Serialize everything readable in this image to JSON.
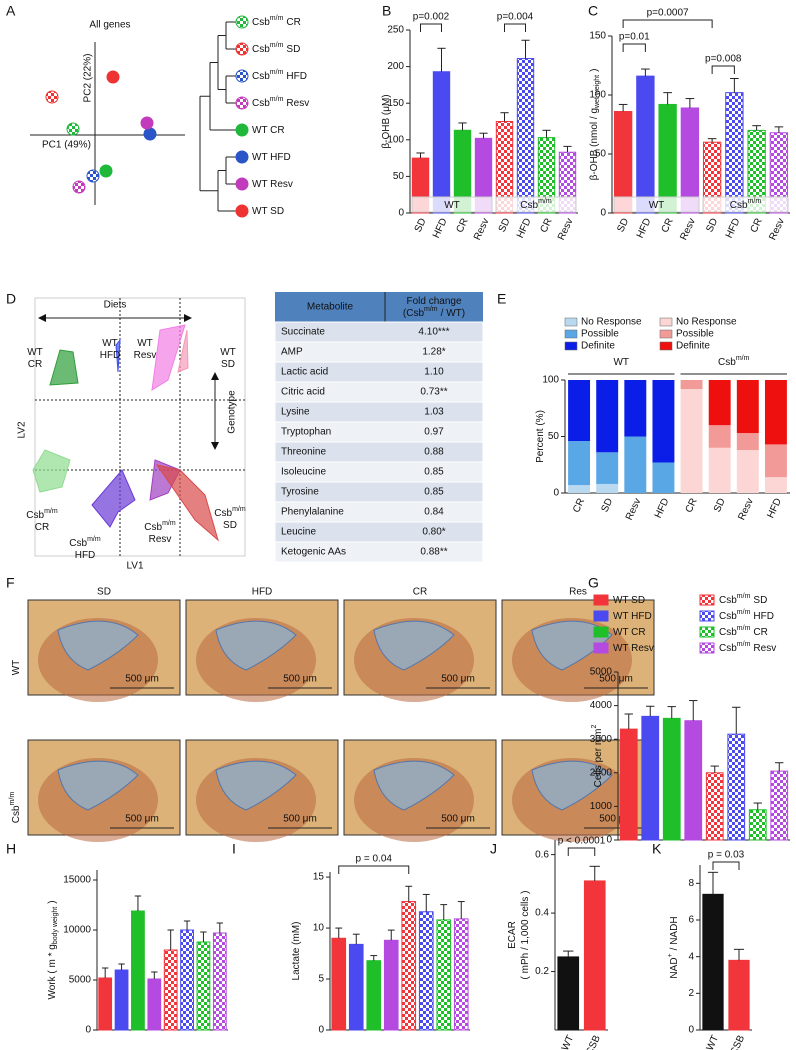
{
  "pca": {
    "panel": "A",
    "title": "All genes",
    "xlabel": "PC1 (49%)",
    "ylabel": "PC2 (22%)",
    "dendrogram": [
      {
        "text": "Csb",
        "sup": "m/m",
        "rest": "CR"
      },
      {
        "text": "Csb",
        "sup": "m/m",
        "rest": "SD"
      },
      {
        "text": "Csb",
        "sup": "m/m",
        "rest": "HFD"
      },
      {
        "text": "Csb",
        "sup": "m/m",
        "rest": "Resv"
      },
      "WT CR",
      "WT HFD",
      "WT Resv",
      "WT SD"
    ],
    "colors": [
      "#1fb83a",
      "#ee3333",
      "#2a55c8",
      "#c23bbd",
      "#1fb83a",
      "#2a55c8",
      "#c23bbd",
      "#ee3333"
    ],
    "checkered": [
      true,
      true,
      true,
      true,
      false,
      false,
      false,
      false
    ]
  },
  "plsda": {
    "panel": "D",
    "xlabel": "LV1",
    "ylabel": "LV2",
    "diets_label": "Diets",
    "genotype_label": "Genotype",
    "groups": [
      [
        "WT",
        "CR"
      ],
      [
        "WT",
        "HFD"
      ],
      [
        "WT",
        "Resv"
      ],
      [
        "WT",
        "SD"
      ],
      [
        {
          "text": "Csb",
          "sup": "m/m"
        },
        "CR"
      ],
      [
        {
          "text": "Csb",
          "sup": "m/m"
        },
        "HFD"
      ],
      [
        {
          "text": "Csb",
          "sup": "m/m"
        },
        "Resv"
      ],
      [
        {
          "text": "Csb",
          "sup": "m/m"
        },
        "SD"
      ]
    ]
  },
  "table": {
    "header": [
      "Metabolite",
      [
        "Fold change",
        {
          "text": "(Csb",
          "sup": "m/m",
          "rest": "/ WT)"
        }
      ]
    ],
    "rows": [
      [
        "Succinate",
        "4.10***"
      ],
      [
        "AMP",
        "1.28*"
      ],
      [
        "Lactic acid",
        "1.10"
      ],
      [
        "Citric acid",
        "0.73**"
      ],
      [
        "Lysine",
        "1.03"
      ],
      [
        "Tryptophan",
        "0.97"
      ],
      [
        "Threonine",
        "0.88"
      ],
      [
        "Isoleucine",
        "0.85"
      ],
      [
        "Tyrosine",
        "0.85"
      ],
      [
        "Phenylalanine",
        "0.84"
      ],
      [
        "Leucine",
        "0.80*"
      ],
      [
        "Ketogenic AAs",
        "0.88**"
      ]
    ]
  },
  "histology": {
    "panel": "F",
    "columns": [
      "SD",
      "HFD",
      "CR",
      "Res"
    ],
    "column_colors": [
      "#e8262b",
      "#2424d8",
      "#22c022",
      "#c23bbd"
    ],
    "rows": [
      "WT",
      {
        "text": "Csb",
        "sup": "m/m"
      }
    ],
    "scale_bar": "500 μm"
  },
  "chart_data": [
    {
      "type": "bar",
      "panel": "B",
      "ylabel": "β-OHB (μM)",
      "categories": [
        "SD",
        "HFD",
        "CR",
        "Resv",
        "SD",
        "HFD",
        "CR",
        "Resv"
      ],
      "values": [
        75,
        193,
        113,
        102,
        125,
        211,
        103,
        83
      ],
      "errors": [
        7,
        32,
        10,
        7,
        12,
        25,
        10,
        8
      ],
      "colors": [
        "#f2353b",
        "#4a4af0",
        "#1fbf2a",
        "#b44ae0",
        "#f2353b",
        "#4a4af0",
        "#1fbf2a",
        "#b44ae0"
      ],
      "checkered": [
        false,
        false,
        false,
        false,
        true,
        true,
        true,
        true
      ],
      "groups": [
        "WT",
        {
          "text": "Csb",
          "sup": "m/m"
        }
      ],
      "annotations": [
        "p=0.002",
        "p=0.004"
      ],
      "ylim": [
        0,
        250
      ],
      "yticks": [
        0,
        50,
        100,
        150,
        200,
        250
      ]
    },
    {
      "type": "bar",
      "panel": "C",
      "ylabel": {
        "text": "β-OHB (nmol / g",
        "sub": "wet weight",
        "rest": ")"
      },
      "categories": [
        "SD",
        "HFD",
        "CR",
        "Resv",
        "SD",
        "HFD",
        "CR",
        "Resv"
      ],
      "values": [
        86,
        116,
        92,
        89,
        60,
        102,
        70,
        68
      ],
      "errors": [
        6,
        6,
        10,
        8,
        3,
        12,
        4,
        5
      ],
      "colors": [
        "#f2353b",
        "#4a4af0",
        "#1fbf2a",
        "#b44ae0",
        "#f2353b",
        "#4a4af0",
        "#1fbf2a",
        "#b44ae0"
      ],
      "checkered": [
        false,
        false,
        false,
        false,
        true,
        true,
        true,
        true
      ],
      "groups": [
        "WT",
        {
          "text": "Csb",
          "sup": "m/m"
        }
      ],
      "annotations": [
        "p=0.0007",
        "p=0.01",
        "p=0.008"
      ],
      "ylim": [
        0,
        150
      ],
      "yticks": [
        0,
        50,
        100,
        150
      ]
    },
    {
      "type": "stacked_bar",
      "panel": "E",
      "ylabel": "Percent (%)",
      "categories": [
        "CR",
        "SD",
        "Resv",
        "HFD",
        "CR",
        "SD",
        "Resv",
        "HFD"
      ],
      "series": [
        {
          "name": "No Response",
          "color": "#b9d9f0",
          "values": [
            7,
            8,
            0,
            0,
            null,
            null,
            null,
            null
          ]
        },
        {
          "name": "Possible",
          "color": "#5aa7e6",
          "values": [
            39,
            28,
            50,
            27,
            null,
            null,
            null,
            null
          ]
        },
        {
          "name": "Definite",
          "color": "#0a1ee8",
          "values": [
            54,
            64,
            50,
            73,
            null,
            null,
            null,
            null
          ]
        },
        {
          "name": "No Response",
          "color": "#fbd6d4",
          "values": [
            null,
            null,
            null,
            null,
            92,
            40,
            38,
            14
          ]
        },
        {
          "name": "Possible",
          "color": "#f29a98",
          "values": [
            null,
            null,
            null,
            null,
            8,
            20,
            15,
            29
          ]
        },
        {
          "name": "Definite",
          "color": "#ee0f0f",
          "values": [
            null,
            null,
            null,
            null,
            0,
            40,
            47,
            57
          ]
        }
      ],
      "groups": [
        "WT",
        {
          "text": "Csb",
          "sup": "m/m"
        }
      ],
      "ylim": [
        0,
        100
      ],
      "yticks": [
        0,
        50,
        100
      ]
    },
    {
      "type": "bar",
      "panel": "G",
      "ylabel": {
        "text": "Cells per mm",
        "sup": "2"
      },
      "legend": [
        "WT SD",
        "WT HFD",
        "WT CR",
        "WT Resv",
        {
          "text": "Csb",
          "sup": "m/m",
          "rest": "SD"
        },
        {
          "text": "Csb",
          "sup": "m/m",
          "rest": "HFD"
        },
        {
          "text": "Csb",
          "sup": "m/m",
          "rest": "CR"
        },
        {
          "text": "Csb",
          "sup": "m/m",
          "rest": "Resv"
        }
      ],
      "values": [
        3300,
        3680,
        3620,
        3550,
        2000,
        3150,
        900,
        2050
      ],
      "errors": [
        450,
        300,
        350,
        600,
        200,
        800,
        200,
        250
      ],
      "colors": [
        "#f2353b",
        "#4a4af0",
        "#1fbf2a",
        "#b44ae0",
        "#f2353b",
        "#4a4af0",
        "#1fbf2a",
        "#b44ae0"
      ],
      "checkered": [
        false,
        false,
        false,
        false,
        true,
        true,
        true,
        true
      ],
      "ylim": [
        0,
        5000
      ],
      "yticks": [
        0,
        1000,
        2000,
        3000,
        4000,
        5000
      ]
    },
    {
      "type": "bar",
      "panel": "H",
      "ylabel": {
        "text": "Work ( m * g",
        "sub": "body weight",
        "rest": ")"
      },
      "values": [
        5200,
        6000,
        11900,
        5100,
        8000,
        10000,
        8800,
        9700
      ],
      "errors": [
        1000,
        600,
        1500,
        700,
        2000,
        900,
        1000,
        1000
      ],
      "colors": [
        "#f2353b",
        "#4a4af0",
        "#1fbf2a",
        "#b44ae0",
        "#f2353b",
        "#4a4af0",
        "#1fbf2a",
        "#b44ae0"
      ],
      "checkered": [
        false,
        false,
        false,
        false,
        true,
        true,
        true,
        true
      ],
      "ylim": [
        0,
        16000
      ],
      "yticks": [
        0,
        5000,
        10000,
        15000
      ]
    },
    {
      "type": "bar",
      "panel": "I",
      "ylabel": "Lactate (mM)",
      "values": [
        9.0,
        8.4,
        6.8,
        8.8,
        12.6,
        11.6,
        10.8,
        10.9
      ],
      "errors": [
        1.0,
        1.0,
        0.5,
        1.0,
        1.5,
        1.7,
        1.5,
        1.7
      ],
      "colors": [
        "#f2353b",
        "#4a4af0",
        "#1fbf2a",
        "#b44ae0",
        "#f2353b",
        "#4a4af0",
        "#1fbf2a",
        "#b44ae0"
      ],
      "checkered": [
        false,
        false,
        false,
        false,
        true,
        true,
        true,
        true
      ],
      "annotations": [
        "p = 0.04"
      ],
      "ylim": [
        0,
        15.5
      ],
      "yticks": [
        0,
        5,
        10,
        15
      ]
    },
    {
      "type": "bar",
      "panel": "J",
      "ylabel": [
        "ECAR",
        "( mPh / 1,000 cells )"
      ],
      "categories": [
        "WT",
        "CSB"
      ],
      "values": [
        0.25,
        0.51
      ],
      "errors": [
        0.02,
        0.05
      ],
      "colors": [
        "#111111",
        "#f2353b"
      ],
      "checkered": [
        false,
        false
      ],
      "annotations": [
        "p < 0.0001"
      ],
      "ylim": [
        0,
        0.65
      ],
      "yticks": [
        0.2,
        0.4,
        0.6
      ]
    },
    {
      "type": "bar",
      "panel": "K",
      "ylabel": {
        "text": "NAD",
        "sup": "+",
        "rest": "/ NADH"
      },
      "categories": [
        "WT",
        "CSB"
      ],
      "values": [
        7.4,
        3.8
      ],
      "errors": [
        1.2,
        0.6
      ],
      "colors": [
        "#111111",
        "#f2353b"
      ],
      "checkered": [
        false,
        false
      ],
      "annotations": [
        "p = 0.03"
      ],
      "ylim": [
        0,
        9
      ],
      "yticks": [
        0,
        2,
        4,
        6,
        8
      ]
    }
  ]
}
